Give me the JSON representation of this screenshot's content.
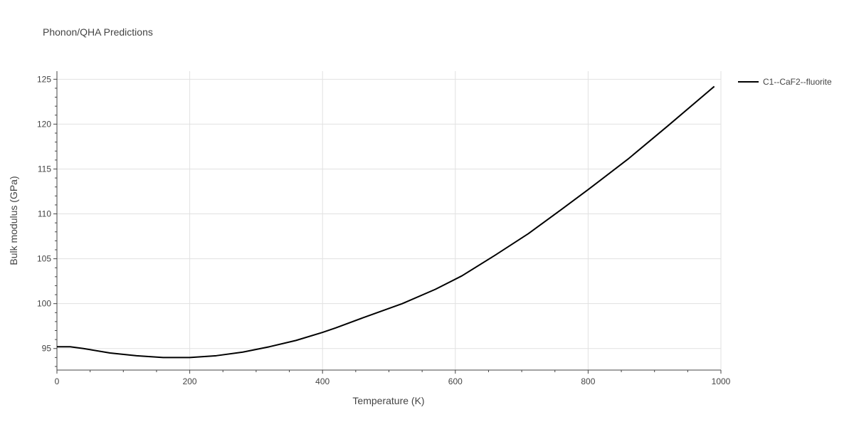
{
  "chart_data": {
    "type": "line",
    "title": "Phonon/QHA Predictions",
    "xlabel": "Temperature (K)",
    "ylabel": "Bulk modulus (GPa)",
    "xlim": [
      0,
      1000
    ],
    "ylim": [
      92.6,
      125.9
    ],
    "xticks": [
      0,
      200,
      400,
      600,
      800,
      1000
    ],
    "yticks": [
      95,
      100,
      105,
      110,
      115,
      120,
      125
    ],
    "grid": true,
    "legend_position": "top-right",
    "series": [
      {
        "name": "C1--CaF2--fluorite",
        "color": "#000000",
        "x": [
          0,
          20,
          40,
          80,
          120,
          160,
          200,
          240,
          280,
          320,
          360,
          400,
          420,
          460,
          520,
          570,
          610,
          660,
          710,
          760,
          800,
          860,
          920,
          990
        ],
        "y": [
          95.2,
          95.2,
          95.0,
          94.5,
          94.2,
          94.0,
          94.0,
          94.2,
          94.6,
          95.2,
          95.9,
          96.8,
          97.3,
          98.4,
          100.0,
          101.6,
          103.1,
          105.4,
          107.8,
          110.5,
          112.7,
          116.1,
          119.8,
          124.2
        ]
      }
    ]
  }
}
